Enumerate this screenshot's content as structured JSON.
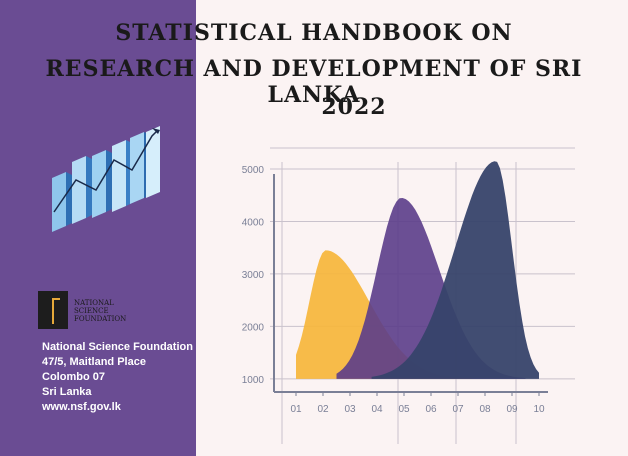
{
  "title": {
    "line1": "STATISTICAL HANDBOOK ON",
    "line2": "RESEARCH AND DEVELOPMENT OF SRI LANKA",
    "line3": "2022"
  },
  "logo": {
    "text_line1": "NATIONAL",
    "text_line2": "SCIENCE",
    "text_line3": "FOUNDATION"
  },
  "address": {
    "org": "National Science Foundation",
    "street": "47/5, Maitland Place",
    "city": "Colombo 07",
    "country": "Sri Lanka",
    "web": "www.nsf.gov.lk"
  },
  "chart_data": {
    "type": "area",
    "categories": [
      "01",
      "02",
      "03",
      "04",
      "05",
      "06",
      "07",
      "08",
      "09",
      "10"
    ],
    "y_ticks": [
      "1000",
      "2000",
      "3000",
      "4000",
      "5000"
    ],
    "ylim": [
      750,
      5400
    ],
    "grid": true,
    "series": [
      {
        "color": "#f6b63b",
        "opacity": 0.92,
        "start": 1,
        "peak_x": 2.1,
        "peak_y": 3450,
        "end": 7.5,
        "base": 1000,
        "left_width": 0.6,
        "right_width": 1.6
      },
      {
        "color": "#5b3d89",
        "opacity": 0.9,
        "start": 2.5,
        "peak_x": 4.9,
        "peak_y": 4450,
        "end": 9.5,
        "base": 1000,
        "left_width": 0.9,
        "right_width": 1.4
      },
      {
        "color": "#37436a",
        "opacity": 0.95,
        "start": 3.8,
        "peak_x": 8.4,
        "peak_y": 5150,
        "end": 10,
        "base": 1000,
        "left_width": 1.5,
        "right_width": 0.6
      }
    ]
  }
}
